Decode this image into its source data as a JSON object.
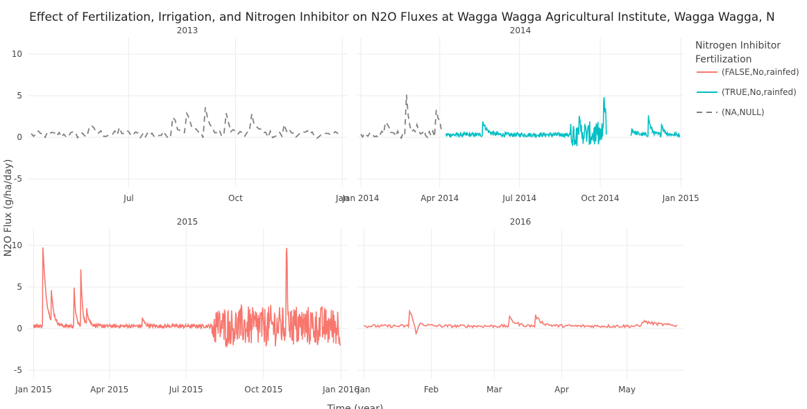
{
  "chart_data": {
    "type": "line",
    "title": "Effect of Fertilization, Irrigation, and Nitrogen Inhibitor on N2O Fluxes at Wagga Wagga Agricultural Institute, Wagga Wagga, N",
    "xlabel": "Time (year)",
    "ylabel": "N2O Flux (g/ha/day)",
    "ylim": [
      -6,
      12
    ],
    "y_ticks": [
      -5,
      0,
      5,
      10
    ],
    "grid": true,
    "legend": {
      "position": "right",
      "title_line1": "Nitrogen Inhibitor",
      "title_line2": "Fertilization",
      "entries": [
        {
          "name": "(FALSE,No,rainfed)",
          "color": "#F8766D",
          "dash": "solid"
        },
        {
          "name": "(TRUE,No,rainfed)",
          "color": "#00BFC4",
          "dash": "solid"
        },
        {
          "name": "(NA,NULL)",
          "color": "#7F7F7F",
          "dash": "dash"
        }
      ]
    },
    "colors": {
      "FALSE": "#F8766D",
      "TRUE": "#00BFC4",
      "NA": "#7F7F7F"
    },
    "facets": [
      {
        "label": "2013",
        "xlim": [
          "2013-04-05",
          "2014-01-05"
        ],
        "ticks": [
          {
            "date": "2013-07-01",
            "label": "Jul"
          },
          {
            "date": "2013-10-01",
            "label": "Oct"
          },
          {
            "date": "2014-01-01",
            "label": "Jan"
          }
        ],
        "series": [
          {
            "name": "(NA,NULL)",
            "start": "2013-04-08",
            "end": "2013-12-31",
            "step": 2,
            "base": 0.3,
            "noise": 0.45,
            "events": [
              {
                "date": "2013-05-28",
                "amp": 1.0,
                "decay": 6
              },
              {
                "date": "2013-06-22",
                "amp": 0.8,
                "decay": 4
              },
              {
                "date": "2013-08-08",
                "amp": 2.4,
                "decay": 5
              },
              {
                "date": "2013-08-20",
                "amp": 2.6,
                "decay": 4
              },
              {
                "date": "2013-09-05",
                "amp": 3.2,
                "decay": 4
              },
              {
                "date": "2013-09-22",
                "amp": 2.8,
                "decay": 4
              },
              {
                "date": "2013-10-15",
                "amp": 2.5,
                "decay": 4
              },
              {
                "date": "2013-11-12",
                "amp": 0.9,
                "decay": 6
              }
            ]
          }
        ]
      },
      {
        "label": "2014",
        "xlim": [
          "2013-12-28",
          "2015-01-04"
        ],
        "ticks": [
          {
            "date": "2014-01-01",
            "label": "Jan 2014"
          },
          {
            "date": "2014-04-01",
            "label": "Apr 2014"
          },
          {
            "date": "2014-07-01",
            "label": "Jul 2014"
          },
          {
            "date": "2014-10-01",
            "label": "Oct 2014"
          },
          {
            "date": "2015-01-01",
            "label": "Jan 2015"
          }
        ],
        "series": [
          {
            "name": "(NA,NULL)",
            "start": "2014-01-01",
            "end": "2014-04-05",
            "step": 2,
            "base": 0.3,
            "noise": 0.45,
            "events": [
              {
                "date": "2014-01-28",
                "amp": 1.8,
                "decay": 5
              },
              {
                "date": "2014-02-21",
                "amp": 7.2,
                "decay": 3
              },
              {
                "date": "2014-03-05",
                "amp": 1.2,
                "decay": 4
              },
              {
                "date": "2014-03-28",
                "amp": 3.2,
                "decay": 4
              }
            ]
          },
          {
            "name": "(TRUE,No,rainfed)",
            "start": "2014-04-08",
            "end": "2014-10-08",
            "step": 0.5,
            "base": 0.3,
            "noise": 0.25,
            "events": [
              {
                "date": "2014-05-20",
                "amp": 1.6,
                "decay": 5
              },
              {
                "date": "2014-09-05",
                "amp": 2.0,
                "decay": 3
              },
              {
                "date": "2014-10-05",
                "amp": 5.0,
                "decay": 2
              }
            ],
            "noisy": [
              {
                "from": "2014-08-28",
                "to": "2014-10-08",
                "amp": 1.4
              }
            ]
          },
          {
            "name": "(TRUE,No,rainfed)",
            "start": "2014-11-05",
            "end": "2014-12-31",
            "step": 0.5,
            "base": 0.3,
            "noise": 0.25,
            "events": [
              {
                "date": "2014-11-06",
                "amp": 0.7,
                "decay": 4
              },
              {
                "date": "2014-11-25",
                "amp": 2.2,
                "decay": 3
              },
              {
                "date": "2014-12-10",
                "amp": 1.3,
                "decay": 3
              }
            ]
          }
        ]
      },
      {
        "label": "2015",
        "xlim": [
          "2014-12-25",
          "2016-01-08"
        ],
        "ticks": [
          {
            "date": "2015-01-01",
            "label": "Jan 2015"
          },
          {
            "date": "2015-04-01",
            "label": "Apr 2015"
          },
          {
            "date": "2015-07-01",
            "label": "Jul 2015"
          },
          {
            "date": "2015-10-01",
            "label": "Oct 2015"
          },
          {
            "date": "2016-01-01",
            "label": "Jan 2016"
          }
        ],
        "series": [
          {
            "name": "(FALSE,No,rainfed)",
            "start": "2015-01-01",
            "end": "2015-12-31",
            "step": 0.5,
            "base": 0.3,
            "noise": 0.22,
            "events": [
              {
                "date": "2015-01-12",
                "amp": 9.6,
                "decay": 4
              },
              {
                "date": "2015-01-22",
                "amp": 3.5,
                "decay": 3
              },
              {
                "date": "2015-02-18",
                "amp": 4.5,
                "decay": 2
              },
              {
                "date": "2015-02-26",
                "amp": 6.6,
                "decay": 2
              },
              {
                "date": "2015-03-05",
                "amp": 2.0,
                "decay": 3
              },
              {
                "date": "2015-05-10",
                "amp": 1.0,
                "decay": 3
              },
              {
                "date": "2015-10-28",
                "amp": 10.6,
                "decay": 1.5
              }
            ],
            "noisy": [
              {
                "from": "2015-08-01",
                "to": "2015-12-31",
                "amp": 2.4
              }
            ]
          }
        ]
      },
      {
        "label": "2016",
        "xlim": [
          "2015-12-29",
          "2016-05-27"
        ],
        "ticks": [
          {
            "date": "2016-01-01",
            "label": "Jan"
          },
          {
            "date": "2016-02-01",
            "label": "Feb"
          },
          {
            "date": "2016-03-01",
            "label": "Mar"
          },
          {
            "date": "2016-04-01",
            "label": "Apr"
          },
          {
            "date": "2016-05-01",
            "label": "May"
          }
        ],
        "series": [
          {
            "name": "(FALSE,No,rainfed)",
            "start": "2016-01-01",
            "end": "2016-05-24",
            "step": 0.5,
            "base": 0.3,
            "noise": 0.18,
            "events": [
              {
                "date": "2016-01-22",
                "amp": 1.8,
                "decay": 3
              },
              {
                "date": "2016-03-08",
                "amp": 1.0,
                "decay": 3
              },
              {
                "date": "2016-03-20",
                "amp": 1.2,
                "decay": 3
              },
              {
                "date": "2016-05-08",
                "amp": 0.6,
                "decay": 8
              }
            ],
            "dips": [
              {
                "date": "2016-01-25",
                "amp": -1.4
              }
            ]
          }
        ]
      }
    ]
  }
}
